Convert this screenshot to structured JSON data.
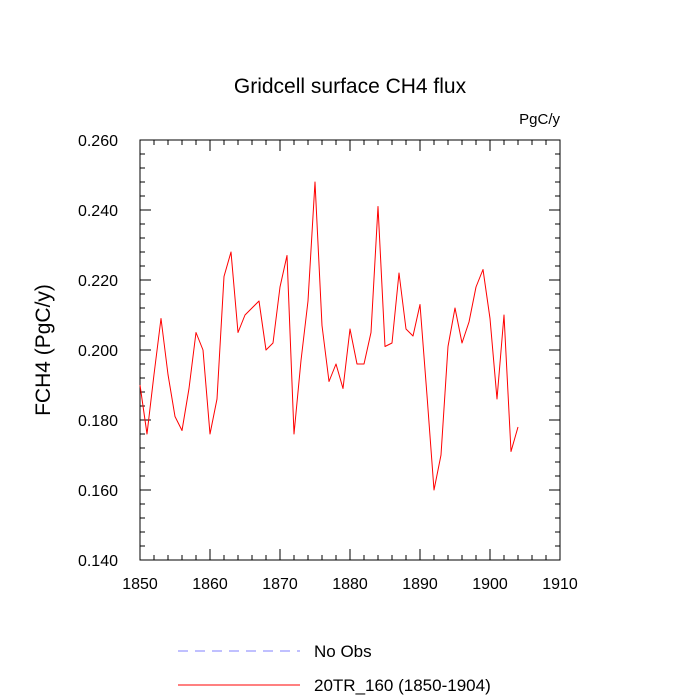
{
  "chart_data": {
    "type": "line",
    "title": "Gridcell surface CH4 flux",
    "units_label": "PgC/y",
    "ylabel": "FCH4  (PgC/y)",
    "xlabel": "",
    "xlim": [
      1850,
      1910
    ],
    "ylim": [
      0.14,
      0.26
    ],
    "xticks": [
      "1850",
      "1860",
      "1870",
      "1880",
      "1890",
      "1900",
      "1910"
    ],
    "yticks": [
      "0.140",
      "0.160",
      "0.180",
      "0.200",
      "0.220",
      "0.240",
      "0.260"
    ],
    "grid": false,
    "legend_position": "bottom",
    "series": [
      {
        "name": "No Obs",
        "color": "#8080ff",
        "style": "dashed",
        "values": []
      },
      {
        "name": "20TR_160 (1850-1904)",
        "color": "#ff0000",
        "style": "solid",
        "x": [
          1850,
          1851,
          1852,
          1853,
          1854,
          1855,
          1856,
          1857,
          1858,
          1859,
          1860,
          1861,
          1862,
          1863,
          1864,
          1865,
          1866,
          1867,
          1868,
          1869,
          1870,
          1871,
          1872,
          1873,
          1874,
          1875,
          1876,
          1877,
          1878,
          1879,
          1880,
          1881,
          1882,
          1883,
          1884,
          1885,
          1886,
          1887,
          1888,
          1889,
          1890,
          1891,
          1892,
          1893,
          1894,
          1895,
          1896,
          1897,
          1898,
          1899,
          1900,
          1901,
          1902,
          1903,
          1904
        ],
        "values": [
          0.19,
          0.176,
          0.193,
          0.209,
          0.193,
          0.181,
          0.177,
          0.189,
          0.205,
          0.2,
          0.176,
          0.186,
          0.221,
          0.228,
          0.205,
          0.21,
          0.212,
          0.214,
          0.2,
          0.202,
          0.218,
          0.227,
          0.176,
          0.197,
          0.214,
          0.248,
          0.207,
          0.191,
          0.196,
          0.189,
          0.206,
          0.196,
          0.196,
          0.205,
          0.241,
          0.201,
          0.202,
          0.222,
          0.206,
          0.204,
          0.213,
          0.187,
          0.16,
          0.17,
          0.201,
          0.212,
          0.202,
          0.208,
          0.218,
          0.223,
          0.209,
          0.186,
          0.21,
          0.171,
          0.178
        ]
      }
    ]
  }
}
